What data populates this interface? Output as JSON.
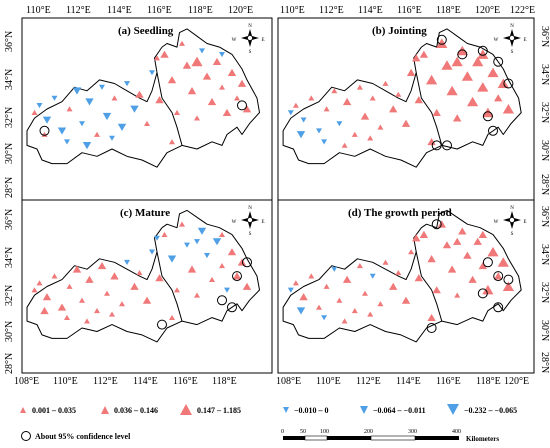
{
  "lon_labels_top": [
    "110°E",
    "112°E",
    "114°E",
    "116°E",
    "118°E",
    "120°E",
    "122°E"
  ],
  "lon_labels_bottom": [
    "108°E",
    "110°E",
    "112°E",
    "114°E",
    "116°E",
    "118°E",
    "120°E"
  ],
  "lat_labels": [
    "36°N",
    "34°N",
    "32°N",
    "30°N",
    "28°N"
  ],
  "panels": [
    {
      "id": "a",
      "title": "(a) Seedling"
    },
    {
      "id": "b",
      "title": "(b) Jointing"
    },
    {
      "id": "c",
      "title": "(c) Mature"
    },
    {
      "id": "d",
      "title": "(d) The growth period"
    }
  ],
  "compass": {
    "n": "N",
    "s": "S",
    "e": "E",
    "w": "W"
  },
  "legend": {
    "increase": [
      "0.001 – 0.035",
      "0.036 – 0.146",
      "0.147 – 1.185"
    ],
    "decrease": [
      "−0.010 – 0",
      "−0.064 – −0.011",
      "−0.232 – −0.065"
    ],
    "significance": "About 95% confidence level",
    "scale_ticks": [
      "0",
      "50",
      "100",
      "200",
      "300",
      "400"
    ],
    "scale_unit": "Kilometers"
  },
  "colors": {
    "increase": "#f07878",
    "decrease": "#4f9fe6"
  },
  "stations": {
    "a": [
      [
        0.05,
        0.52,
        "u",
        1
      ],
      [
        0.07,
        0.48,
        "d",
        1
      ],
      [
        0.1,
        0.56,
        "d",
        2
      ],
      [
        0.13,
        0.44,
        "d",
        1
      ],
      [
        0.16,
        0.62,
        "d",
        2
      ],
      [
        0.19,
        0.5,
        "u",
        1
      ],
      [
        0.22,
        0.4,
        "d",
        2
      ],
      [
        0.24,
        0.58,
        "d",
        1
      ],
      [
        0.27,
        0.46,
        "d",
        2
      ],
      [
        0.3,
        0.64,
        "u",
        1
      ],
      [
        0.32,
        0.38,
        "d",
        1
      ],
      [
        0.34,
        0.54,
        "d",
        2
      ],
      [
        0.37,
        0.44,
        "u",
        1
      ],
      [
        0.4,
        0.6,
        "d",
        2
      ],
      [
        0.42,
        0.36,
        "d",
        1
      ],
      [
        0.45,
        0.5,
        "d",
        2
      ],
      [
        0.47,
        0.42,
        "u",
        2
      ],
      [
        0.5,
        0.58,
        "u",
        1
      ],
      [
        0.52,
        0.3,
        "d",
        1
      ],
      [
        0.55,
        0.45,
        "u",
        2
      ],
      [
        0.57,
        0.2,
        "u",
        2
      ],
      [
        0.6,
        0.34,
        "u",
        2
      ],
      [
        0.62,
        0.52,
        "u",
        1
      ],
      [
        0.64,
        0.14,
        "u",
        1
      ],
      [
        0.66,
        0.26,
        "u",
        2
      ],
      [
        0.68,
        0.4,
        "u",
        2
      ],
      [
        0.7,
        0.55,
        "u",
        1
      ],
      [
        0.72,
        0.18,
        "d",
        1
      ],
      [
        0.74,
        0.32,
        "u",
        2
      ],
      [
        0.76,
        0.46,
        "u",
        2
      ],
      [
        0.78,
        0.24,
        "u",
        2
      ],
      [
        0.8,
        0.38,
        "u",
        1
      ],
      [
        0.82,
        0.52,
        "u",
        2
      ],
      [
        0.84,
        0.3,
        "u",
        2
      ],
      [
        0.86,
        0.44,
        "u",
        1
      ],
      [
        0.88,
        0.36,
        "u",
        2
      ],
      [
        0.9,
        0.5,
        "u",
        2
      ],
      [
        0.6,
        0.68,
        "u",
        1
      ],
      [
        0.54,
        0.22,
        "u",
        1
      ],
      [
        0.18,
        0.68,
        "d",
        1
      ],
      [
        0.26,
        0.7,
        "d",
        2
      ],
      [
        0.09,
        0.64,
        "u",
        1
      ],
      [
        0.36,
        0.66,
        "d",
        1
      ],
      [
        0.7,
        0.24,
        "u",
        3
      ],
      [
        0.8,
        0.2,
        "d",
        1
      ]
    ],
    "b": [
      [
        0.05,
        0.52,
        "d",
        1
      ],
      [
        0.07,
        0.48,
        "u",
        1
      ],
      [
        0.1,
        0.56,
        "d",
        1
      ],
      [
        0.13,
        0.44,
        "u",
        1
      ],
      [
        0.16,
        0.62,
        "d",
        1
      ],
      [
        0.19,
        0.5,
        "u",
        1
      ],
      [
        0.22,
        0.4,
        "u",
        1
      ],
      [
        0.24,
        0.58,
        "d",
        1
      ],
      [
        0.27,
        0.46,
        "u",
        2
      ],
      [
        0.3,
        0.64,
        "u",
        1
      ],
      [
        0.32,
        0.38,
        "u",
        1
      ],
      [
        0.34,
        0.54,
        "u",
        2
      ],
      [
        0.37,
        0.44,
        "u",
        1
      ],
      [
        0.4,
        0.6,
        "u",
        1
      ],
      [
        0.42,
        0.36,
        "u",
        1
      ],
      [
        0.45,
        0.5,
        "u",
        2
      ],
      [
        0.47,
        0.42,
        "u",
        1
      ],
      [
        0.5,
        0.58,
        "u",
        2
      ],
      [
        0.52,
        0.3,
        "u",
        2
      ],
      [
        0.55,
        0.45,
        "u",
        2
      ],
      [
        0.57,
        0.2,
        "u",
        2
      ],
      [
        0.6,
        0.34,
        "u",
        3
      ],
      [
        0.62,
        0.52,
        "u",
        2
      ],
      [
        0.64,
        0.14,
        "u",
        3
      ],
      [
        0.66,
        0.26,
        "u",
        3
      ],
      [
        0.68,
        0.4,
        "u",
        3
      ],
      [
        0.7,
        0.55,
        "u",
        2
      ],
      [
        0.72,
        0.18,
        "u",
        3
      ],
      [
        0.74,
        0.32,
        "u",
        3
      ],
      [
        0.76,
        0.46,
        "u",
        3
      ],
      [
        0.78,
        0.24,
        "u",
        3
      ],
      [
        0.8,
        0.38,
        "u",
        3
      ],
      [
        0.82,
        0.52,
        "u",
        3
      ],
      [
        0.84,
        0.3,
        "u",
        3
      ],
      [
        0.86,
        0.44,
        "u",
        2
      ],
      [
        0.88,
        0.36,
        "u",
        3
      ],
      [
        0.9,
        0.5,
        "u",
        3
      ],
      [
        0.6,
        0.68,
        "u",
        2
      ],
      [
        0.54,
        0.22,
        "u",
        2
      ],
      [
        0.18,
        0.68,
        "d",
        1
      ],
      [
        0.26,
        0.7,
        "u",
        1
      ],
      [
        0.09,
        0.64,
        "d",
        2
      ],
      [
        0.36,
        0.66,
        "u",
        1
      ],
      [
        0.7,
        0.24,
        "u",
        3
      ],
      [
        0.8,
        0.2,
        "u",
        3
      ]
    ],
    "c": [
      [
        0.05,
        0.52,
        "u",
        1
      ],
      [
        0.07,
        0.48,
        "u",
        1
      ],
      [
        0.1,
        0.56,
        "u",
        2
      ],
      [
        0.13,
        0.44,
        "u",
        1
      ],
      [
        0.16,
        0.62,
        "u",
        2
      ],
      [
        0.19,
        0.5,
        "u",
        1
      ],
      [
        0.22,
        0.4,
        "u",
        2
      ],
      [
        0.24,
        0.58,
        "u",
        1
      ],
      [
        0.27,
        0.46,
        "u",
        2
      ],
      [
        0.3,
        0.64,
        "u",
        1
      ],
      [
        0.32,
        0.38,
        "u",
        2
      ],
      [
        0.34,
        0.54,
        "u",
        1
      ],
      [
        0.37,
        0.44,
        "u",
        2
      ],
      [
        0.4,
        0.6,
        "u",
        1
      ],
      [
        0.42,
        0.36,
        "d",
        1
      ],
      [
        0.45,
        0.5,
        "u",
        2
      ],
      [
        0.47,
        0.42,
        "u",
        1
      ],
      [
        0.5,
        0.58,
        "u",
        2
      ],
      [
        0.52,
        0.3,
        "d",
        1
      ],
      [
        0.55,
        0.45,
        "u",
        2
      ],
      [
        0.57,
        0.2,
        "u",
        1
      ],
      [
        0.6,
        0.34,
        "d",
        2
      ],
      [
        0.62,
        0.52,
        "u",
        1
      ],
      [
        0.64,
        0.14,
        "u",
        1
      ],
      [
        0.66,
        0.26,
        "d",
        1
      ],
      [
        0.68,
        0.4,
        "u",
        2
      ],
      [
        0.7,
        0.55,
        "u",
        1
      ],
      [
        0.72,
        0.18,
        "d",
        2
      ],
      [
        0.74,
        0.32,
        "d",
        1
      ],
      [
        0.76,
        0.46,
        "u",
        1
      ],
      [
        0.78,
        0.24,
        "d",
        2
      ],
      [
        0.8,
        0.38,
        "u",
        1
      ],
      [
        0.82,
        0.52,
        "d",
        1
      ],
      [
        0.84,
        0.3,
        "u",
        2
      ],
      [
        0.86,
        0.44,
        "u",
        2
      ],
      [
        0.88,
        0.36,
        "u",
        2
      ],
      [
        0.9,
        0.5,
        "u",
        2
      ],
      [
        0.6,
        0.68,
        "u",
        1
      ],
      [
        0.54,
        0.22,
        "d",
        1
      ],
      [
        0.18,
        0.68,
        "u",
        1
      ],
      [
        0.26,
        0.7,
        "u",
        1
      ],
      [
        0.09,
        0.64,
        "u",
        2
      ],
      [
        0.36,
        0.66,
        "u",
        1
      ],
      [
        0.7,
        0.24,
        "d",
        1
      ],
      [
        0.8,
        0.2,
        "u",
        1
      ]
    ],
    "d": [
      [
        0.05,
        0.52,
        "d",
        1
      ],
      [
        0.07,
        0.48,
        "u",
        1
      ],
      [
        0.1,
        0.56,
        "u",
        2
      ],
      [
        0.13,
        0.44,
        "u",
        1
      ],
      [
        0.16,
        0.62,
        "u",
        1
      ],
      [
        0.19,
        0.5,
        "u",
        1
      ],
      [
        0.22,
        0.4,
        "d",
        1
      ],
      [
        0.24,
        0.58,
        "u",
        1
      ],
      [
        0.27,
        0.46,
        "u",
        2
      ],
      [
        0.3,
        0.64,
        "u",
        1
      ],
      [
        0.32,
        0.38,
        "u",
        1
      ],
      [
        0.34,
        0.54,
        "u",
        1
      ],
      [
        0.37,
        0.44,
        "d",
        1
      ],
      [
        0.4,
        0.6,
        "u",
        1
      ],
      [
        0.42,
        0.36,
        "u",
        1
      ],
      [
        0.45,
        0.5,
        "u",
        2
      ],
      [
        0.47,
        0.42,
        "u",
        1
      ],
      [
        0.5,
        0.58,
        "u",
        2
      ],
      [
        0.52,
        0.3,
        "u",
        1
      ],
      [
        0.55,
        0.45,
        "u",
        2
      ],
      [
        0.57,
        0.2,
        "u",
        2
      ],
      [
        0.6,
        0.34,
        "u",
        2
      ],
      [
        0.62,
        0.52,
        "u",
        2
      ],
      [
        0.64,
        0.14,
        "u",
        2
      ],
      [
        0.66,
        0.26,
        "u",
        2
      ],
      [
        0.68,
        0.4,
        "u",
        2
      ],
      [
        0.7,
        0.55,
        "u",
        1
      ],
      [
        0.72,
        0.18,
        "u",
        2
      ],
      [
        0.74,
        0.32,
        "u",
        2
      ],
      [
        0.76,
        0.46,
        "u",
        2
      ],
      [
        0.78,
        0.24,
        "u",
        2
      ],
      [
        0.8,
        0.38,
        "u",
        2
      ],
      [
        0.82,
        0.52,
        "u",
        3
      ],
      [
        0.84,
        0.3,
        "u",
        3
      ],
      [
        0.86,
        0.44,
        "u",
        2
      ],
      [
        0.88,
        0.36,
        "u",
        3
      ],
      [
        0.9,
        0.5,
        "u",
        3
      ],
      [
        0.6,
        0.68,
        "u",
        2
      ],
      [
        0.54,
        0.22,
        "u",
        2
      ],
      [
        0.18,
        0.68,
        "d",
        1
      ],
      [
        0.26,
        0.7,
        "u",
        1
      ],
      [
        0.09,
        0.64,
        "d",
        2
      ],
      [
        0.36,
        0.66,
        "u",
        1
      ],
      [
        0.7,
        0.24,
        "u",
        2
      ],
      [
        0.8,
        0.2,
        "u",
        2
      ]
    ]
  },
  "significant": {
    "a": [
      [
        0.88,
        0.48
      ],
      [
        0.09,
        0.62
      ]
    ],
    "b": [
      [
        0.64,
        0.12
      ],
      [
        0.72,
        0.2
      ],
      [
        0.8,
        0.18
      ],
      [
        0.86,
        0.24
      ],
      [
        0.9,
        0.36
      ],
      [
        0.82,
        0.54
      ],
      [
        0.84,
        0.62
      ],
      [
        0.66,
        0.7
      ],
      [
        0.62,
        0.7
      ]
    ],
    "c": [
      [
        0.9,
        0.36
      ],
      [
        0.86,
        0.44
      ],
      [
        0.8,
        0.58
      ],
      [
        0.84,
        0.62
      ],
      [
        0.56,
        0.72
      ]
    ],
    "d": [
      [
        0.62,
        0.14
      ],
      [
        0.82,
        0.36
      ],
      [
        0.86,
        0.44
      ],
      [
        0.9,
        0.46
      ],
      [
        0.8,
        0.54
      ],
      [
        0.86,
        0.62
      ],
      [
        0.6,
        0.74
      ]
    ]
  }
}
